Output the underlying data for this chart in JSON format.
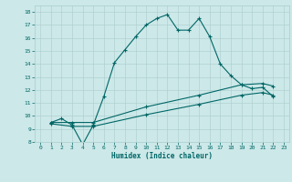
{
  "title": "",
  "xlabel": "Humidex (Indice chaleur)",
  "bg_color": "#cce8e8",
  "grid_color": "#aacccc",
  "line_color": "#006666",
  "xlim": [
    -0.5,
    23.5
  ],
  "ylim": [
    8,
    18.5
  ],
  "xticks": [
    0,
    1,
    2,
    3,
    4,
    5,
    6,
    7,
    8,
    9,
    10,
    11,
    12,
    13,
    14,
    15,
    16,
    17,
    18,
    19,
    20,
    21,
    22,
    23
  ],
  "yticks": [
    8,
    9,
    10,
    11,
    12,
    13,
    14,
    15,
    16,
    17,
    18
  ],
  "line1_x": [
    1,
    2,
    3,
    4,
    5,
    6,
    7,
    8,
    9,
    10,
    11,
    12,
    13,
    14,
    15,
    16,
    17,
    18,
    19,
    20,
    21,
    22
  ],
  "line1_y": [
    9.5,
    9.8,
    9.3,
    7.8,
    9.3,
    11.5,
    14.1,
    15.1,
    16.1,
    17.0,
    17.5,
    17.8,
    16.6,
    16.6,
    17.5,
    16.1,
    14.0,
    13.1,
    12.4,
    12.1,
    12.2,
    11.5
  ],
  "line2_x": [
    1,
    3,
    5,
    10,
    15,
    19,
    21,
    22
  ],
  "line2_y": [
    9.5,
    9.5,
    9.5,
    10.7,
    11.6,
    12.4,
    12.5,
    12.3
  ],
  "line3_x": [
    1,
    3,
    5,
    10,
    15,
    19,
    21,
    22
  ],
  "line3_y": [
    9.4,
    9.2,
    9.2,
    10.1,
    10.9,
    11.6,
    11.8,
    11.6
  ],
  "figsize": [
    3.2,
    2.0
  ],
  "dpi": 100
}
